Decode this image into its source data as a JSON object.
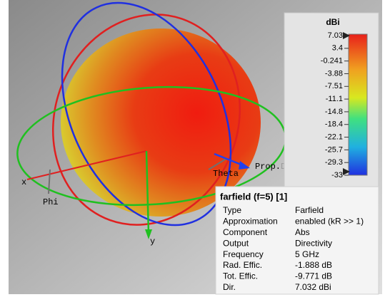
{
  "viewport": {
    "axes": {
      "x": "x",
      "y": "y",
      "phi": "Phi",
      "theta": "Theta",
      "prop_dir": [
        "Prop.",
        "Dir."
      ]
    }
  },
  "colorbar": {
    "title": "dBi",
    "ticks": [
      "7.03",
      "3.4",
      "-0.241",
      "-3.88",
      "-7.51",
      "-11.1",
      "-14.8",
      "-18.4",
      "-22.1",
      "-25.7",
      "-29.3",
      "-33"
    ]
  },
  "info": {
    "title": "farfield (f=5) [1]",
    "rows": [
      [
        "Type",
        "Farfield"
      ],
      [
        "Approximation",
        "enabled (kR >> 1)"
      ],
      [
        "Component",
        "Abs"
      ],
      [
        "Output",
        "Directivity"
      ],
      [
        "Frequency",
        "5 GHz"
      ],
      [
        "Rad. Effic.",
        "-1.888 dB"
      ],
      [
        "Tot. Effic.",
        "-9.771 dB"
      ],
      [
        "Dir.",
        "7.032 dBi"
      ]
    ]
  }
}
